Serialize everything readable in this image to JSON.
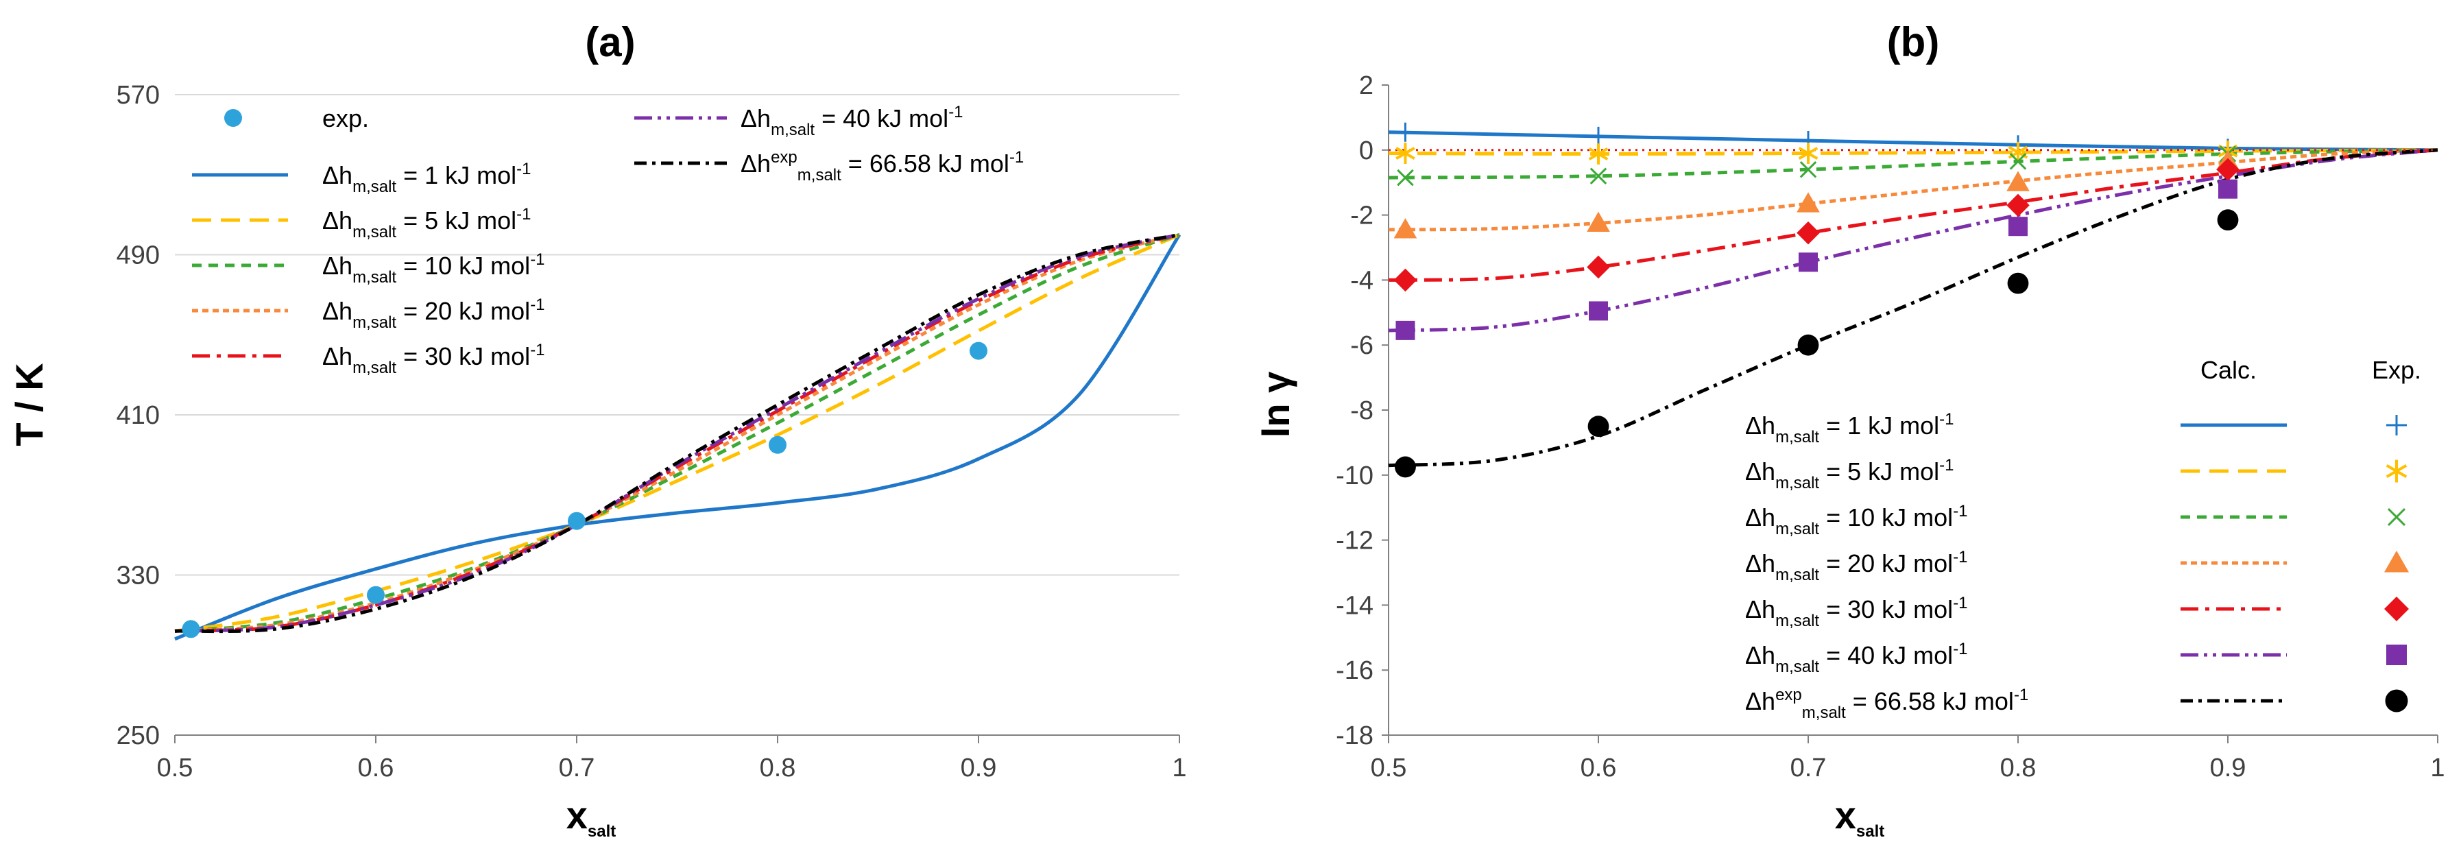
{
  "chart_data": [
    {
      "type": "line",
      "title": "(a)",
      "xlabel": "x",
      "xlabel_sub": "salt",
      "ylabel": "T / K",
      "xlim": [
        0.5,
        1.0
      ],
      "ylim": [
        250,
        570
      ],
      "x_ticks": [
        "0.5",
        "0.6",
        "0.7",
        "0.8",
        "0.9",
        "1"
      ],
      "y_ticks": [
        "250",
        "330",
        "410",
        "490",
        "570"
      ],
      "experimental": {
        "name": "exp.",
        "color": "#2EA3DB",
        "x": [
          0.508,
          0.6,
          0.7,
          0.8,
          0.9
        ],
        "y": [
          303,
          320,
          357,
          395,
          442
        ]
      },
      "series": [
        {
          "label_main": "Δh",
          "label_sub": "m,salt",
          "label_sup": "",
          "label_rest": " = 1 kJ mol",
          "label_unit_sup": "-1",
          "color": "#1F77C9",
          "dash": "",
          "x": [
            0.5,
            0.55,
            0.6,
            0.65,
            0.7,
            0.75,
            0.8,
            0.85,
            0.9,
            0.95,
            1.0
          ],
          "y": [
            298,
            318,
            333,
            346,
            355,
            361,
            366,
            373,
            388,
            420,
            500
          ]
        },
        {
          "label_main": "Δh",
          "label_sub": "m,salt",
          "label_sup": "",
          "label_rest": " = 5 kJ mol",
          "label_unit_sup": "-1",
          "color": "#FFC000",
          "dash": "28,14",
          "x": [
            0.5,
            0.55,
            0.6,
            0.65,
            0.7,
            0.75,
            0.8,
            0.85,
            0.9,
            0.95,
            1.0
          ],
          "y": [
            302,
            309,
            322,
            337,
            355,
            377,
            400,
            425,
            452,
            478,
            500
          ]
        },
        {
          "label_main": "Δh",
          "label_sub": "m,salt",
          "label_sup": "",
          "label_rest": " = 10 kJ mol",
          "label_unit_sup": "-1",
          "color": "#3BAA35",
          "dash": "14,10",
          "x": [
            0.5,
            0.55,
            0.6,
            0.65,
            0.7,
            0.75,
            0.8,
            0.85,
            0.9,
            0.95,
            1.0
          ],
          "y": [
            302,
            306,
            318,
            334,
            355,
            380,
            406,
            433,
            460,
            484,
            500
          ]
        },
        {
          "label_main": "Δh",
          "label_sub": "m,salt",
          "label_sup": "",
          "label_rest": " = 20 kJ mol",
          "label_unit_sup": "-1",
          "color": "#F7893B",
          "dash": "9,6",
          "x": [
            0.5,
            0.55,
            0.6,
            0.65,
            0.7,
            0.75,
            0.8,
            0.85,
            0.9,
            0.95,
            1.0
          ],
          "y": [
            302,
            305,
            316,
            333,
            355,
            382,
            410,
            438,
            465,
            487,
            500
          ]
        },
        {
          "label_main": "Δh",
          "label_sub": "m,salt",
          "label_sup": "",
          "label_rest": " = 30 kJ mol",
          "label_unit_sup": "-1",
          "color": "#E8121A",
          "dash": "26,10,6,10",
          "x": [
            0.5,
            0.55,
            0.6,
            0.65,
            0.7,
            0.75,
            0.8,
            0.85,
            0.9,
            0.95,
            1.0
          ],
          "y": [
            302,
            304,
            315,
            332,
            355,
            384,
            412,
            440,
            467,
            488,
            500
          ]
        },
        {
          "label_main": "Δh",
          "label_sub": "m,salt",
          "label_sup": "",
          "label_rest": " = 40 kJ mol",
          "label_unit_sup": "-1",
          "color": "#7B2FA8",
          "dash": "26,8,5,8,5,8",
          "x": [
            0.5,
            0.55,
            0.6,
            0.65,
            0.7,
            0.75,
            0.8,
            0.85,
            0.9,
            0.95,
            1.0
          ],
          "y": [
            302,
            304,
            315,
            331,
            355,
            385,
            413,
            441,
            468,
            489,
            500
          ]
        },
        {
          "label_main": "Δh",
          "label_sub": "m,salt",
          "label_sup": "exp",
          "label_rest": " = 66.58 kJ mol",
          "label_unit_sup": "-1",
          "color": "#000000",
          "dash": "18,8,5,8",
          "x": [
            0.5,
            0.55,
            0.6,
            0.65,
            0.7,
            0.75,
            0.8,
            0.85,
            0.9,
            0.95,
            1.0
          ],
          "y": [
            302,
            303,
            313,
            330,
            355,
            386,
            415,
            443,
            470,
            490,
            500
          ]
        }
      ]
    },
    {
      "type": "line",
      "title": "(b)",
      "xlabel": "x",
      "xlabel_sub": "salt",
      "ylabel": "ln γ",
      "xlim": [
        0.5,
        1.0
      ],
      "ylim": [
        -18,
        2
      ],
      "x_ticks": [
        "0.5",
        "0.6",
        "0.7",
        "0.8",
        "0.9",
        "1"
      ],
      "y_ticks": [
        "2",
        "0",
        "-2",
        "-4",
        "-6",
        "-8",
        "-10",
        "-12",
        "-14",
        "-16",
        "-18"
      ],
      "legend_header_calc": "Calc.",
      "legend_header_exp": "Exp.",
      "series": [
        {
          "label_main": "Δh",
          "label_sub": "m,salt",
          "label_sup": "",
          "label_rest": " = 1 kJ mol",
          "label_unit_sup": "-1",
          "color": "#1F77C9",
          "dash": "",
          "marker": "plus",
          "x": [
            0.5,
            0.6,
            0.7,
            0.8,
            0.9,
            1.0
          ],
          "y": [
            0.55,
            0.42,
            0.29,
            0.16,
            0.05,
            0.0
          ],
          "exp_x": [
            0.508,
            0.6,
            0.7,
            0.8,
            0.9
          ],
          "exp_y": [
            0.55,
            0.42,
            0.29,
            0.16,
            0.05
          ]
        },
        {
          "label_main": "Δh",
          "label_sub": "m,salt",
          "label_sup": "",
          "label_rest": " = 5 kJ mol",
          "label_unit_sup": "-1",
          "color": "#FFC000",
          "dash": "28,14",
          "marker": "asterisk",
          "x": [
            0.5,
            0.6,
            0.7,
            0.8,
            0.9,
            1.0
          ],
          "y": [
            -0.1,
            -0.12,
            -0.1,
            -0.07,
            -0.03,
            0.0
          ],
          "exp_x": [
            0.508,
            0.6,
            0.7,
            0.8,
            0.9
          ],
          "exp_y": [
            -0.1,
            -0.12,
            -0.1,
            -0.07,
            -0.03
          ]
        },
        {
          "label_main": "Δh",
          "label_sub": "m,salt",
          "label_sup": "",
          "label_rest": " = 10 kJ mol",
          "label_unit_sup": "-1",
          "color": "#3BAA35",
          "dash": "14,10",
          "marker": "x",
          "x": [
            0.5,
            0.6,
            0.7,
            0.8,
            0.9,
            1.0
          ],
          "y": [
            -0.85,
            -0.8,
            -0.6,
            -0.35,
            -0.12,
            0.0
          ],
          "exp_x": [
            0.508,
            0.6,
            0.7,
            0.8,
            0.9
          ],
          "exp_y": [
            -0.85,
            -0.8,
            -0.6,
            -0.35,
            -0.12
          ]
        },
        {
          "label_main": "Δh",
          "label_sub": "m,salt",
          "label_sup": "",
          "label_rest": " = 20 kJ mol",
          "label_unit_sup": "-1",
          "color": "#F7893B",
          "dash": "9,6",
          "marker": "triangle",
          "x": [
            0.5,
            0.55,
            0.6,
            0.65,
            0.7,
            0.75,
            0.8,
            0.85,
            0.9,
            0.95,
            1.0
          ],
          "y": [
            -2.45,
            -2.42,
            -2.25,
            -2.0,
            -1.65,
            -1.3,
            -0.95,
            -0.65,
            -0.38,
            -0.12,
            0.0
          ],
          "exp_x": [
            0.508,
            0.6,
            0.7,
            0.8,
            0.9
          ],
          "exp_y": [
            -2.45,
            -2.25,
            -1.65,
            -1.0,
            -0.35
          ]
        },
        {
          "label_main": "Δh",
          "label_sub": "m,salt",
          "label_sup": "",
          "label_rest": " = 30 kJ mol",
          "label_unit_sup": "-1",
          "color": "#E8121A",
          "dash": "26,10,6,10",
          "marker": "diamond",
          "x": [
            0.5,
            0.55,
            0.6,
            0.65,
            0.7,
            0.75,
            0.8,
            0.85,
            0.9,
            0.95,
            1.0
          ],
          "y": [
            -4.0,
            -3.95,
            -3.6,
            -3.1,
            -2.55,
            -2.05,
            -1.6,
            -1.12,
            -0.7,
            -0.25,
            0.0
          ],
          "exp_x": [
            0.508,
            0.6,
            0.7,
            0.8,
            0.9
          ],
          "exp_y": [
            -4.0,
            -3.6,
            -2.55,
            -1.7,
            -0.6
          ]
        },
        {
          "label_main": "Δh",
          "label_sub": "m,salt",
          "label_sup": "",
          "label_rest": " = 40 kJ mol",
          "label_unit_sup": "-1",
          "color": "#7B2FA8",
          "dash": "26,8,5,8,5,8",
          "marker": "square",
          "x": [
            0.5,
            0.55,
            0.6,
            0.65,
            0.7,
            0.75,
            0.8,
            0.85,
            0.9,
            0.95,
            1.0
          ],
          "y": [
            -5.55,
            -5.45,
            -4.95,
            -4.25,
            -3.45,
            -2.7,
            -2.0,
            -1.35,
            -0.8,
            -0.3,
            0.0
          ],
          "exp_x": [
            0.508,
            0.6,
            0.7,
            0.8,
            0.9
          ],
          "exp_y": [
            -5.55,
            -4.95,
            -3.45,
            -2.35,
            -1.2
          ]
        },
        {
          "label_main": "Δh",
          "label_sub": "m,salt",
          "label_sup": "exp",
          "label_rest": " = 66.58 kJ mol",
          "label_unit_sup": "-1",
          "color": "#000000",
          "dash": "18,8,5,8",
          "marker": "circle",
          "x": [
            0.5,
            0.55,
            0.6,
            0.65,
            0.7,
            0.75,
            0.8,
            0.85,
            0.9,
            0.95,
            1.0
          ],
          "y": [
            -9.7,
            -9.55,
            -8.8,
            -7.4,
            -6.0,
            -4.7,
            -3.3,
            -2.0,
            -0.9,
            -0.25,
            0.0
          ],
          "exp_x": [
            0.508,
            0.6,
            0.7,
            0.8,
            0.9
          ],
          "exp_y": [
            -9.75,
            -8.5,
            -6.0,
            -4.1,
            -2.15
          ]
        }
      ]
    }
  ]
}
